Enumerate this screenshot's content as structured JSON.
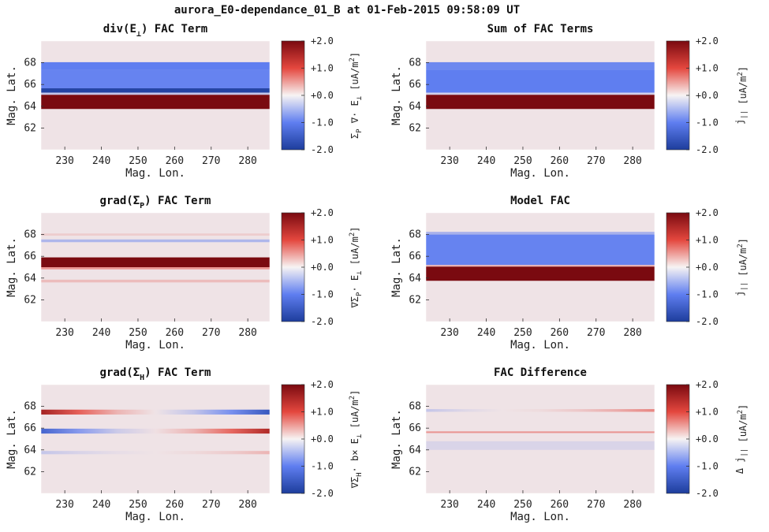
{
  "figure_title": "aurora_E0-dependance_01_B at 01-Feb-2015 09:58:09 UT",
  "colors": {
    "background_pink": "#efe3e6",
    "deep_blue": "#1d3d9c",
    "zero_white": "#f7f3f3",
    "deep_red": "#7a0a10"
  },
  "colorbar_ticks": [
    "+2.0",
    "+1.0",
    "+0.0",
    "-1.0",
    "-2.0"
  ],
  "chart_data": [
    {
      "type": "heatmap",
      "title_main": "div(E",
      "title_sub": "⊥",
      "title_rest": ") FAC Term",
      "xlabel": "Mag. Lon.",
      "ylabel": "Mag. Lat.",
      "cbar_label_main": "Σ",
      "cbar_label_sub": "P",
      "cbar_label_rest": " ∇· E",
      "cbar_label_sub2": "⊥",
      "cbar_label_unit": " [uA/m",
      "cbar_label_sup": "2",
      "cbar_label_end": "]",
      "xticks": [
        "230",
        "240",
        "250",
        "260",
        "270",
        "280"
      ],
      "yticks": [
        "68",
        "66",
        "64",
        "62"
      ],
      "xlim": [
        223.5,
        286
      ],
      "ylim": [
        60,
        70
      ],
      "clim": [
        -2.0,
        2.0
      ],
      "bands": [
        {
          "lat": [
            67.35,
            68.05
          ],
          "value": -1.0
        },
        {
          "lat": [
            65.65,
            67.35
          ],
          "value": -0.95
        },
        {
          "lat": [
            65.25,
            65.65
          ],
          "value": -1.9
        },
        {
          "lat": [
            65.05,
            65.25
          ],
          "value": -0.3
        },
        {
          "lat": [
            63.75,
            65.05
          ],
          "value": 2.0
        }
      ]
    },
    {
      "type": "heatmap",
      "title_main": "Sum of FAC Terms",
      "title_sub": "",
      "title_rest": "",
      "xlabel": "Mag. Lon.",
      "ylabel": "Mag. Lat.",
      "cbar_label_main": "j",
      "cbar_label_sub": "||",
      "cbar_label_rest": "",
      "cbar_label_sub2": "",
      "cbar_label_unit": " [uA/m",
      "cbar_label_sup": "2",
      "cbar_label_end": "]",
      "xticks": [
        "230",
        "240",
        "250",
        "260",
        "270",
        "280"
      ],
      "yticks": [
        "68",
        "66",
        "64",
        "62"
      ],
      "xlim": [
        223.5,
        286
      ],
      "ylim": [
        60,
        70
      ],
      "clim": [
        -2.0,
        2.0
      ],
      "bands": [
        {
          "lat": [
            67.35,
            68.05
          ],
          "value": -0.9
        },
        {
          "lat": [
            65.25,
            67.35
          ],
          "value": -1.0
        },
        {
          "lat": [
            65.05,
            65.25
          ],
          "value": -0.2
        },
        {
          "lat": [
            63.75,
            65.05
          ],
          "value": 2.0
        }
      ]
    },
    {
      "type": "heatmap",
      "title_main": "grad(Σ",
      "title_sub": "P",
      "title_rest": ") FAC Term",
      "xlabel": "Mag. Lon.",
      "ylabel": "Mag. Lat.",
      "cbar_label_main": "∇Σ",
      "cbar_label_sub": "P",
      "cbar_label_rest": "· E",
      "cbar_label_sub2": "⊥",
      "cbar_label_unit": " [uA/m",
      "cbar_label_sup": "2",
      "cbar_label_end": "]",
      "xticks": [
        "230",
        "240",
        "250",
        "260",
        "270",
        "280"
      ],
      "yticks": [
        "68",
        "66",
        "64",
        "62"
      ],
      "xlim": [
        223.5,
        286
      ],
      "ylim": [
        60,
        70
      ],
      "clim": [
        -2.0,
        2.0
      ],
      "bands": [
        {
          "lat": [
            67.9,
            68.1
          ],
          "value": 0.15
        },
        {
          "lat": [
            67.3,
            67.55
          ],
          "value": -0.45
        },
        {
          "lat": [
            65.0,
            65.9
          ],
          "value": 2.0
        },
        {
          "lat": [
            64.8,
            65.0
          ],
          "value": 0.5
        },
        {
          "lat": [
            63.6,
            63.85
          ],
          "value": 0.25
        }
      ]
    },
    {
      "type": "heatmap",
      "title_main": "Model FAC",
      "title_sub": "",
      "title_rest": "",
      "xlabel": "Mag. Lon.",
      "ylabel": "Mag. Lat.",
      "cbar_label_main": "j",
      "cbar_label_sub": "||",
      "cbar_label_rest": "",
      "cbar_label_sub2": "",
      "cbar_label_unit": " [uA/m",
      "cbar_label_sup": "2",
      "cbar_label_end": "]",
      "xticks": [
        "230",
        "240",
        "250",
        "260",
        "270",
        "280"
      ],
      "yticks": [
        "68",
        "66",
        "64",
        "62"
      ],
      "xlim": [
        223.5,
        286
      ],
      "ylim": [
        60,
        70
      ],
      "clim": [
        -2.0,
        2.0
      ],
      "bands": [
        {
          "lat": [
            68.0,
            68.25
          ],
          "value": -0.5
        },
        {
          "lat": [
            65.2,
            68.0
          ],
          "value": -0.95
        },
        {
          "lat": [
            65.05,
            65.2
          ],
          "value": 0.3
        },
        {
          "lat": [
            63.75,
            65.05
          ],
          "value": 2.0
        }
      ]
    },
    {
      "type": "heatmap",
      "title_main": "grad(Σ",
      "title_sub": "H",
      "title_rest": ") FAC Term",
      "xlabel": "Mag. Lon.",
      "ylabel": "Mag. Lat.",
      "cbar_label_main": "∇Σ",
      "cbar_label_sub": "H",
      "cbar_label_rest": "· b× E",
      "cbar_label_sub2": "⊥",
      "cbar_label_unit": " [uA/m",
      "cbar_label_sup": "2",
      "cbar_label_end": "]",
      "xticks": [
        "230",
        "240",
        "250",
        "260",
        "270",
        "280"
      ],
      "yticks": [
        "68",
        "66",
        "64",
        "62"
      ],
      "xlim": [
        223.5,
        286
      ],
      "ylim": [
        60,
        70
      ],
      "clim": [
        -2.0,
        2.0
      ],
      "bands": [
        {
          "lat": [
            67.25,
            67.7
          ],
          "value": 1.6,
          "value_end": -1.6
        },
        {
          "lat": [
            65.5,
            65.95
          ],
          "value": -1.4,
          "value_end": 1.5
        },
        {
          "lat": [
            63.6,
            63.9
          ],
          "value": -0.3,
          "value_end": 0.3
        }
      ]
    },
    {
      "type": "heatmap",
      "title_main": "FAC Difference",
      "title_sub": "",
      "title_rest": "",
      "xlabel": "Mag. Lon.",
      "ylabel": "Mag. Lat.",
      "cbar_label_main": "Δ j",
      "cbar_label_sub": "||",
      "cbar_label_rest": "",
      "cbar_label_sub2": "",
      "cbar_label_unit": " [uA/m",
      "cbar_label_sup": "2",
      "cbar_label_end": "]",
      "xticks": [
        "230",
        "240",
        "250",
        "260",
        "270",
        "280"
      ],
      "yticks": [
        "68",
        "66",
        "64",
        "62"
      ],
      "xlim": [
        223.5,
        286
      ],
      "ylim": [
        60,
        70
      ],
      "clim": [
        -2.0,
        2.0
      ],
      "bands": [
        {
          "lat": [
            67.5,
            67.75
          ],
          "value": -0.3,
          "value_end": 0.6
        },
        {
          "lat": [
            65.55,
            65.7
          ],
          "value": 0.5
        },
        {
          "lat": [
            64.0,
            64.8
          ],
          "value": -0.15
        }
      ]
    }
  ]
}
